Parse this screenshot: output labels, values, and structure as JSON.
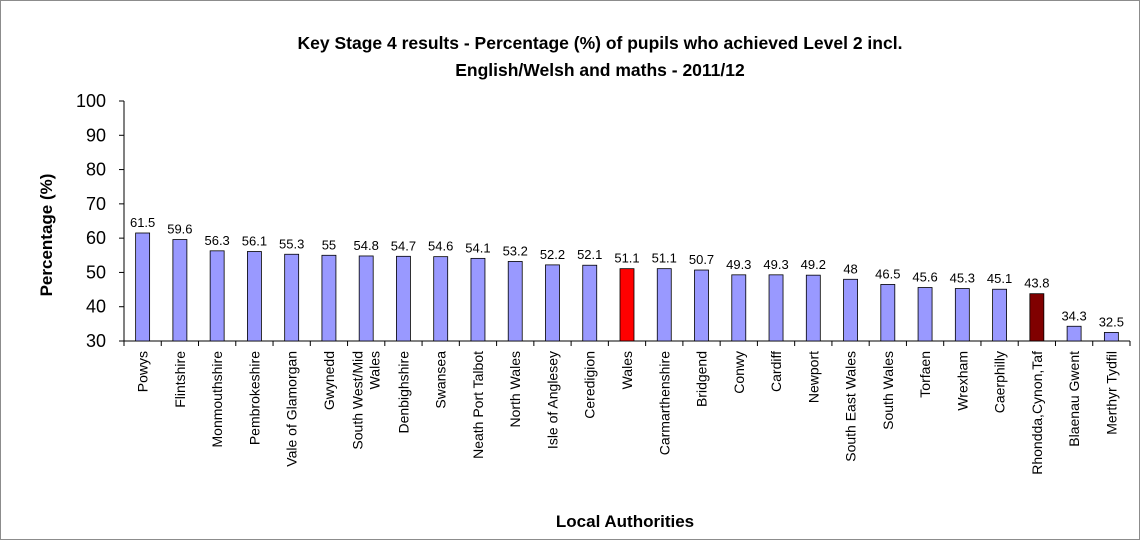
{
  "chart_data": {
    "type": "bar",
    "title_lines": [
      "Key Stage 4 results - Percentage (%) of pupils who achieved Level 2 incl.",
      "English/Welsh and maths - 2011/12"
    ],
    "xlabel": "Local Authorities",
    "ylabel": "Percentage (%)",
    "ylim": [
      30,
      100
    ],
    "yticks": [
      30,
      40,
      50,
      60,
      70,
      80,
      90,
      100
    ],
    "grid": false,
    "categories": [
      [
        "Powys"
      ],
      [
        "Flintshire"
      ],
      [
        "Monmouthshire"
      ],
      [
        "Pembrokeshire"
      ],
      [
        "Vale of Glamorgan"
      ],
      [
        "Gwynedd"
      ],
      [
        "South West/Mid",
        "Wales"
      ],
      [
        "Denbighshire"
      ],
      [
        "Swansea"
      ],
      [
        "Neath Port Talbot"
      ],
      [
        "North Wales"
      ],
      [
        "Isle of Anglesey"
      ],
      [
        "Ceredigion"
      ],
      [
        "Wales"
      ],
      [
        "Carmarthenshire"
      ],
      [
        "Bridgend"
      ],
      [
        "Conwy"
      ],
      [
        "Cardiff"
      ],
      [
        "Newport"
      ],
      [
        "South East Wales"
      ],
      [
        "South Wales"
      ],
      [
        "Torfaen"
      ],
      [
        "Wrexham"
      ],
      [
        "Caerphilly"
      ],
      [
        "Rhondda,Cynon,Taf"
      ],
      [
        "Blaenau Gwent"
      ],
      [
        "Merthyr Tydfil"
      ]
    ],
    "values": [
      61.5,
      59.6,
      56.3,
      56.1,
      55.3,
      55,
      54.8,
      54.7,
      54.6,
      54.1,
      53.2,
      52.2,
      52.1,
      51.1,
      51.1,
      50.7,
      49.3,
      49.3,
      49.2,
      48,
      46.5,
      45.6,
      45.3,
      45.1,
      43.8,
      34.3,
      32.5
    ],
    "value_labels": [
      "61.5",
      "59.6",
      "56.3",
      "56.1",
      "55.3",
      "55",
      "54.8",
      "54.7",
      "54.6",
      "54.1",
      "53.2",
      "52.2",
      "52.1",
      "51.1",
      "51.1",
      "50.7",
      "49.3",
      "49.3",
      "49.2",
      "48",
      "46.5",
      "45.6",
      "45.3",
      "45.1",
      "43.8",
      "34.3",
      "32.5"
    ],
    "colors": {
      "default_bar": "#9999ff",
      "highlights": {
        "Wales": "#ff0000",
        "Rhondda,Cynon,Taf": "#800000"
      },
      "bar_outline": "#000000",
      "axis": "#000000"
    }
  }
}
